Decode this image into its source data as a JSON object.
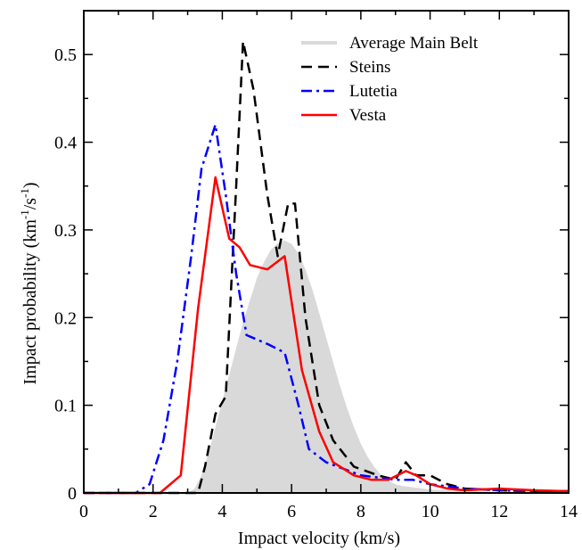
{
  "chart_data": {
    "type": "line",
    "xlabel": "Impact velocity (km/s)",
    "ylabel": {
      "main": "Impact probability (km",
      "exp1": "-1",
      "mid": "/s",
      "exp2": "-1",
      "end": ")"
    },
    "xlim": [
      0,
      14
    ],
    "ylim": [
      0,
      0.55
    ],
    "xticks": [
      0,
      2,
      4,
      6,
      8,
      10,
      12,
      14
    ],
    "yticks": [
      0,
      0.1,
      0.2,
      0.3,
      0.4,
      0.5
    ],
    "xtick_labels": [
      "0",
      "2",
      "4",
      "6",
      "8",
      "10",
      "12",
      "14"
    ],
    "ytick_labels": [
      "0",
      "0.1",
      "0.2",
      "0.3",
      "0.4",
      "0.5"
    ],
    "grid": false,
    "legend_position": "top-right",
    "series": [
      {
        "name": "Average Main Belt",
        "kind": "area",
        "color": "#d9d9d9",
        "x": [
          3.0,
          3.2,
          3.4,
          3.6,
          3.8,
          4.0,
          4.2,
          4.4,
          4.6,
          4.8,
          5.0,
          5.2,
          5.4,
          5.6,
          5.8,
          6.0,
          6.2,
          6.4,
          6.6,
          6.8,
          7.0,
          7.2,
          7.4,
          7.6,
          7.8,
          8.0,
          8.2,
          8.4,
          8.6,
          8.8,
          9.0,
          9.2,
          9.4,
          9.6,
          9.8,
          10.0,
          10.5,
          11.0,
          12.0,
          13.0,
          14.0
        ],
        "y": [
          0.0,
          0.005,
          0.02,
          0.045,
          0.075,
          0.105,
          0.135,
          0.165,
          0.195,
          0.22,
          0.245,
          0.263,
          0.277,
          0.285,
          0.288,
          0.284,
          0.273,
          0.255,
          0.232,
          0.205,
          0.177,
          0.149,
          0.122,
          0.097,
          0.075,
          0.056,
          0.041,
          0.029,
          0.02,
          0.014,
          0.01,
          0.008,
          0.007,
          0.006,
          0.005,
          0.004,
          0.003,
          0.002,
          0.001,
          0.0,
          0.0
        ]
      },
      {
        "name": "Steins",
        "kind": "line",
        "color": "#000000",
        "dash": "12,7",
        "width": 2.5,
        "x": [
          0,
          3.3,
          3.5,
          3.8,
          4.1,
          4.4,
          4.6,
          4.9,
          5.3,
          5.6,
          5.9,
          6.1,
          6.4,
          6.8,
          7.2,
          7.8,
          8.5,
          9.0,
          9.3,
          9.6,
          10.0,
          10.5,
          11.0,
          12.0,
          13.0,
          14.0
        ],
        "y": [
          0,
          0.0,
          0.03,
          0.09,
          0.11,
          0.35,
          0.515,
          0.46,
          0.34,
          0.27,
          0.33,
          0.33,
          0.2,
          0.1,
          0.06,
          0.03,
          0.02,
          0.015,
          0.035,
          0.02,
          0.02,
          0.01,
          0.005,
          0.003,
          0.002,
          0.002
        ]
      },
      {
        "name": "Lutetia",
        "kind": "line",
        "color": "#0000ff",
        "dash": "12,5,3,5",
        "width": 2.5,
        "x": [
          0,
          1.5,
          1.9,
          2.3,
          2.7,
          3.1,
          3.4,
          3.8,
          4.1,
          4.4,
          4.7,
          5.3,
          5.8,
          6.2,
          6.5,
          7.0,
          8.0,
          9.0,
          9.5,
          10.0,
          11.0,
          12.0,
          13.0,
          14.0
        ],
        "y": [
          0,
          0.0,
          0.01,
          0.06,
          0.15,
          0.27,
          0.37,
          0.42,
          0.34,
          0.25,
          0.18,
          0.17,
          0.16,
          0.1,
          0.05,
          0.035,
          0.02,
          0.015,
          0.015,
          0.01,
          0.005,
          0.003,
          0.002,
          0.002
        ]
      },
      {
        "name": "Vesta",
        "kind": "line",
        "color": "#ff0000",
        "dash": "",
        "width": 2.5,
        "x": [
          0,
          2.2,
          2.8,
          3.3,
          3.8,
          4.2,
          4.5,
          4.8,
          5.3,
          5.8,
          6.3,
          6.8,
          7.2,
          7.8,
          8.3,
          8.8,
          9.3,
          9.6,
          10.0,
          10.5,
          11.0,
          12.0,
          13.0,
          14.0
        ],
        "y": [
          0,
          0.0,
          0.02,
          0.21,
          0.36,
          0.29,
          0.28,
          0.26,
          0.255,
          0.27,
          0.14,
          0.07,
          0.035,
          0.02,
          0.015,
          0.015,
          0.025,
          0.02,
          0.01,
          0.005,
          0.003,
          0.005,
          0.003,
          0.002
        ]
      }
    ]
  }
}
